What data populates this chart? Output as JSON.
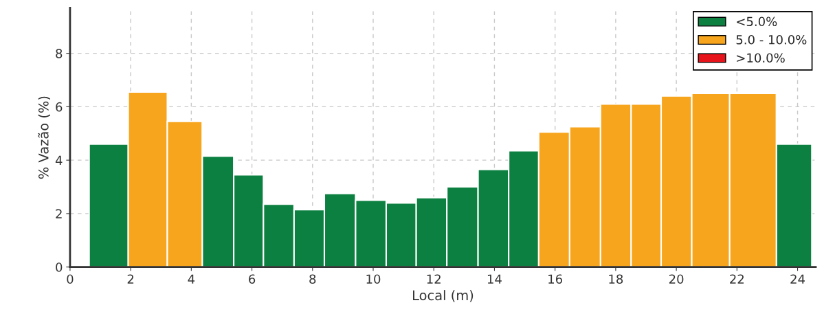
{
  "chart_data": {
    "type": "histogram",
    "xlabel": "Local (m)",
    "ylabel": "% Vazão (%)",
    "bins": [
      0.63,
      1.92,
      3.21,
      4.36,
      5.4,
      6.38,
      7.39,
      8.39,
      9.42,
      10.43,
      11.42,
      12.43,
      13.46,
      14.47,
      15.46,
      16.48,
      17.5,
      18.51,
      19.5,
      20.51,
      21.76,
      23.3,
      24.47
    ],
    "series": [
      {
        "name": "<5.0%",
        "color": "#0b8040",
        "values": [
          4.6,
          null,
          null,
          4.15,
          3.45,
          2.35,
          2.15,
          2.75,
          2.5,
          2.4,
          2.6,
          3.0,
          3.65,
          4.35,
          null,
          null,
          null,
          null,
          null,
          null,
          null,
          4.6
        ]
      },
      {
        "name": "5.0 - 10.0%",
        "color": "#f7a51c",
        "values": [
          null,
          6.55,
          5.45,
          null,
          null,
          null,
          null,
          null,
          null,
          null,
          null,
          null,
          null,
          null,
          5.05,
          5.25,
          6.1,
          6.1,
          6.4,
          6.5,
          6.5,
          null
        ]
      }
    ],
    "annotations": [
      ">10.0%"
    ],
    "xlim": [
      0,
      24.6
    ],
    "ylim": [
      0,
      9.7
    ],
    "xticks": [
      0,
      2,
      4,
      6,
      8,
      10,
      12,
      14,
      16,
      18,
      20,
      22,
      24
    ],
    "yticks": [
      0,
      2,
      4,
      6,
      8
    ],
    "grid": true,
    "legend": "top right"
  }
}
